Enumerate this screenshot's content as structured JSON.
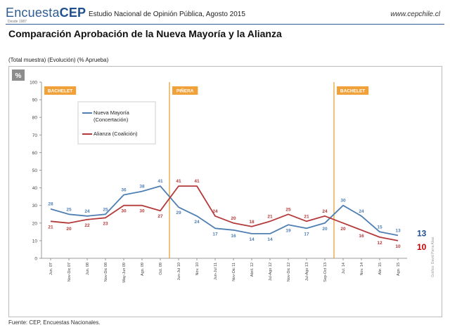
{
  "header": {
    "brand_prefix": "Encuesta",
    "brand_suffix": "CEP",
    "brand_sub": "Desde 1987",
    "study": "Estudio Nacional de Opinión Pública, Agosto 2015",
    "site": "www.cepchile.cl"
  },
  "title": "Comparación Aprobación de la Nueva Mayoría y la Alianza",
  "subtitle": "(Total muestra) (Evolución) (% Aprueba)",
  "source": "Fuente: CEP, Encuestas Nacionales.",
  "credit": "Gráfico: David Parra Alias",
  "colors": {
    "nueva": "#4f7fb3",
    "alianza": "#b43a3a",
    "period_line": "#e39b2a",
    "period_fill": "#f0a13a",
    "axis": "#999999",
    "grid": "#e4e4e4",
    "pct_badge": "#8c8c8c"
  },
  "chart_data": {
    "type": "line",
    "title": "Comparación Aprobación de la Nueva Mayoría y la Alianza",
    "xlabel": "",
    "ylabel": "%",
    "ylim": [
      0,
      100
    ],
    "yticks": [
      0,
      10,
      20,
      30,
      40,
      50,
      60,
      70,
      80,
      90,
      100
    ],
    "grid": false,
    "legend_position": "upper-left",
    "categories": [
      "Jun. 07",
      "Nov-Dic 07",
      "Jun. 08",
      "Nov-Dic 08",
      "May-Jun 09",
      "Ago. 09",
      "Oct. 09",
      "Jun-Jul 10",
      "Nov. 10",
      "Jun-Jul 11",
      "Nov-Dic 11",
      "Abril. 12",
      "Jul-Ago 12",
      "Nov-Dic 12",
      "Jul-Ago 13",
      "Sep-Oct 13",
      "Jul. 14",
      "Nov. 14",
      "Abr. 15",
      "Ago. 15"
    ],
    "series": [
      {
        "name": "Nueva Mayoría (Concertación)",
        "label_line1": "Nueva Mayoría",
        "label_line2": "(Concertación)",
        "color_key": "nueva",
        "end_label": "13",
        "values": [
          28,
          25,
          24,
          25,
          36,
          38,
          41,
          29,
          24,
          17,
          16,
          14,
          14,
          19,
          17,
          20,
          30,
          24,
          15,
          13
        ]
      },
      {
        "name": "Alianza (Coalición)",
        "color_key": "alianza",
        "end_label": "10",
        "values": [
          21,
          20,
          22,
          23,
          30,
          30,
          27,
          41,
          41,
          24,
          20,
          18,
          21,
          25,
          21,
          24,
          20,
          16,
          12,
          10
        ]
      }
    ],
    "periods": [
      {
        "label": "BACHELET",
        "start_index": -0.5
      },
      {
        "label": "PIÑERA",
        "start_index": 6.5
      },
      {
        "label": "BACHELET",
        "start_index": 15.5
      }
    ],
    "percent_badge": "%"
  }
}
